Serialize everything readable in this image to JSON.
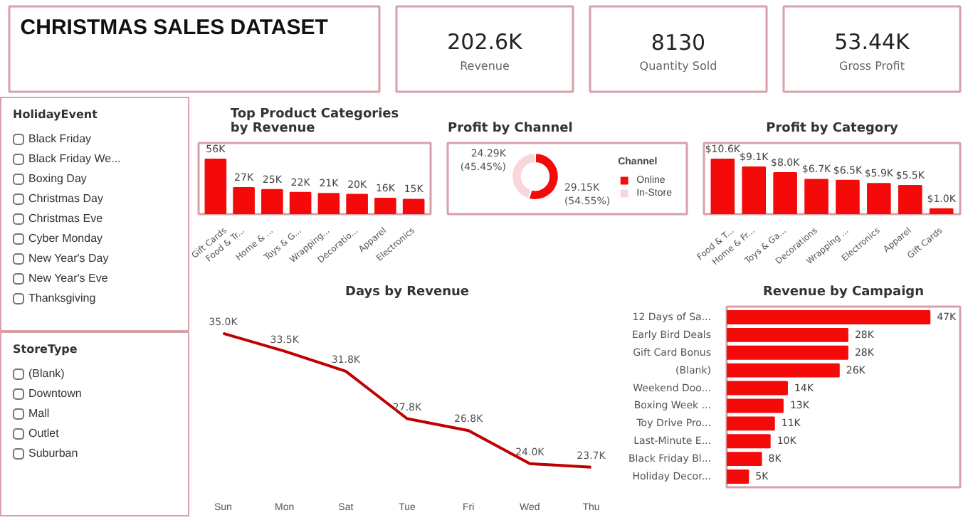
{
  "chart_data": [
    {
      "type": "other",
      "title": "CHRISTMAS SALES DATASET"
    },
    {
      "type": "other",
      "title": "Revenue",
      "annotations": [
        "202.6K"
      ]
    },
    {
      "type": "other",
      "title": "Quantity Sold",
      "annotations": [
        "8130"
      ]
    },
    {
      "type": "other",
      "title": "Gross Profit",
      "annotations": [
        "53.44K"
      ]
    },
    {
      "type": "other",
      "title": "HolidayEvent",
      "categories": [
        "Black Friday",
        "Black Friday We...",
        "Boxing Day",
        "Christmas Day",
        "Christmas Eve",
        "Cyber Monday",
        "New Year's Day",
        "New Year's Eve",
        "Thanksgiving"
      ]
    },
    {
      "type": "other",
      "title": "StoreType",
      "categories": [
        "(Blank)",
        "Downtown",
        "Mall",
        "Outlet",
        "Suburban"
      ]
    },
    {
      "type": "bar",
      "title": "Top Product Categories by Revenue",
      "categories": [
        "Gift Cards",
        "Food & Tr...",
        "Home & ...",
        "Toys & G...",
        "Wrapping...",
        "Decoratio...",
        "Apparel",
        "Electronics"
      ],
      "values": [
        56000,
        27000,
        25000,
        22000,
        21000,
        20000,
        16000,
        15000
      ],
      "value_labels": [
        "56K",
        "27K",
        "25K",
        "22K",
        "21K",
        "20K",
        "16K",
        "15K"
      ],
      "color": "#f50a0a"
    },
    {
      "type": "donut",
      "title": "Profit by Channel",
      "categories": [
        "Online",
        "In-Store"
      ],
      "values": [
        29150,
        24290
      ],
      "value_labels": [
        "29.15K\n(54.55%)",
        "24.29K\n(45.45%)"
      ],
      "colors": [
        "#f50a0a",
        "#f8d7da"
      ],
      "legend_title": "Channel",
      "legend": "right"
    },
    {
      "type": "bar",
      "title": "Profit by Category",
      "categories": [
        "Food & T...",
        "Home & Fr...",
        "Toys & Ga...",
        "Decorations",
        "Wrapping ...",
        "Electronics",
        "Apparel",
        "Gift Cards"
      ],
      "values": [
        10600,
        9100,
        8000,
        6700,
        6500,
        5900,
        5500,
        1000
      ],
      "value_labels": [
        "$10.6K",
        "$9.1K",
        "$8.0K",
        "$6.7K",
        "$6.5K",
        "$5.9K",
        "$5.5K",
        "$1.0K"
      ],
      "color": "#f50a0a"
    },
    {
      "type": "line",
      "title": "Days by Revenue",
      "categories": [
        "Sun",
        "Mon",
        "Sat",
        "Tue",
        "Fri",
        "Wed",
        "Thu"
      ],
      "values": [
        35000,
        33500,
        31800,
        27800,
        26800,
        24000,
        23700
      ],
      "value_labels": [
        "35.0K",
        "33.5K",
        "31.8K",
        "27.8K",
        "26.8K",
        "24.0K",
        "23.7K"
      ],
      "color": "#c00000"
    },
    {
      "type": "bar",
      "orientation": "horizontal",
      "title": "Revenue by Campaign",
      "categories": [
        "12 Days of Sa...",
        "Early Bird Deals",
        "Gift Card Bonus",
        "(Blank)",
        "Weekend Doo...",
        "Boxing Week ...",
        "Toy Drive Pro...",
        "Last-Minute E...",
        "Black Friday Bl...",
        "Holiday Decor..."
      ],
      "values": [
        47000,
        28000,
        28000,
        26000,
        14000,
        13000,
        11000,
        10000,
        8000,
        5000
      ],
      "value_labels": [
        "47K",
        "28K",
        "28K",
        "26K",
        "14K",
        "13K",
        "11K",
        "10K",
        "8K",
        "5K"
      ],
      "color": "#f50a0a"
    }
  ]
}
